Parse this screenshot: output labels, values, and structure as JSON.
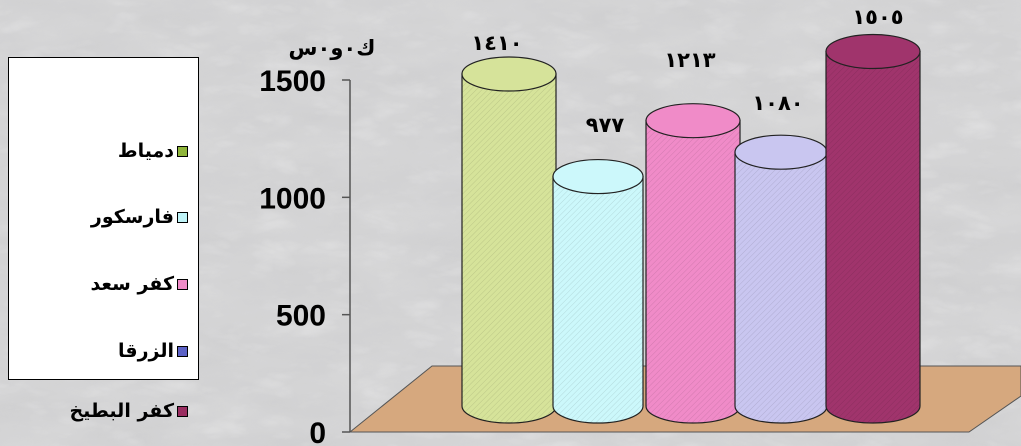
{
  "chart_data": {
    "type": "bar",
    "ylabel": "ك٠و٠س",
    "ylim": [
      0,
      1500
    ],
    "yticks": [
      "0",
      "500",
      "1000",
      "1500"
    ],
    "categories": [
      "دمياط",
      "فارسكور",
      "كفر سعد",
      "الزرقا",
      "كفر البطيخ"
    ],
    "values": [
      1410,
      977,
      1213,
      1080,
      1505
    ],
    "data_labels": [
      "١٤١٠",
      "٩٧٧",
      "١٢١٣",
      "١٠٨٠",
      "١٥٠٥"
    ],
    "colors": [
      "#d6e39a",
      "#ccf8fb",
      "#f08bc8",
      "#c9c6f0",
      "#a0346c"
    ],
    "floor_color": "#d6a87e",
    "legend_position": "left",
    "grid": false
  },
  "legend": {
    "items": [
      {
        "label": "دمياط",
        "icon": "square-green-icon",
        "color": "#8fb53a"
      },
      {
        "label": "فارسكور",
        "icon": "square-cyan-icon",
        "color": "#bff4f8"
      },
      {
        "label": "كفر سعد",
        "icon": "square-pink-icon",
        "color": "#f08bc8"
      },
      {
        "label": "الزرقا",
        "icon": "square-lavender-icon",
        "color": "#5c62c6"
      },
      {
        "label": "كفر البطيخ",
        "icon": "square-maroon-icon",
        "color": "#9a2d60"
      }
    ]
  }
}
